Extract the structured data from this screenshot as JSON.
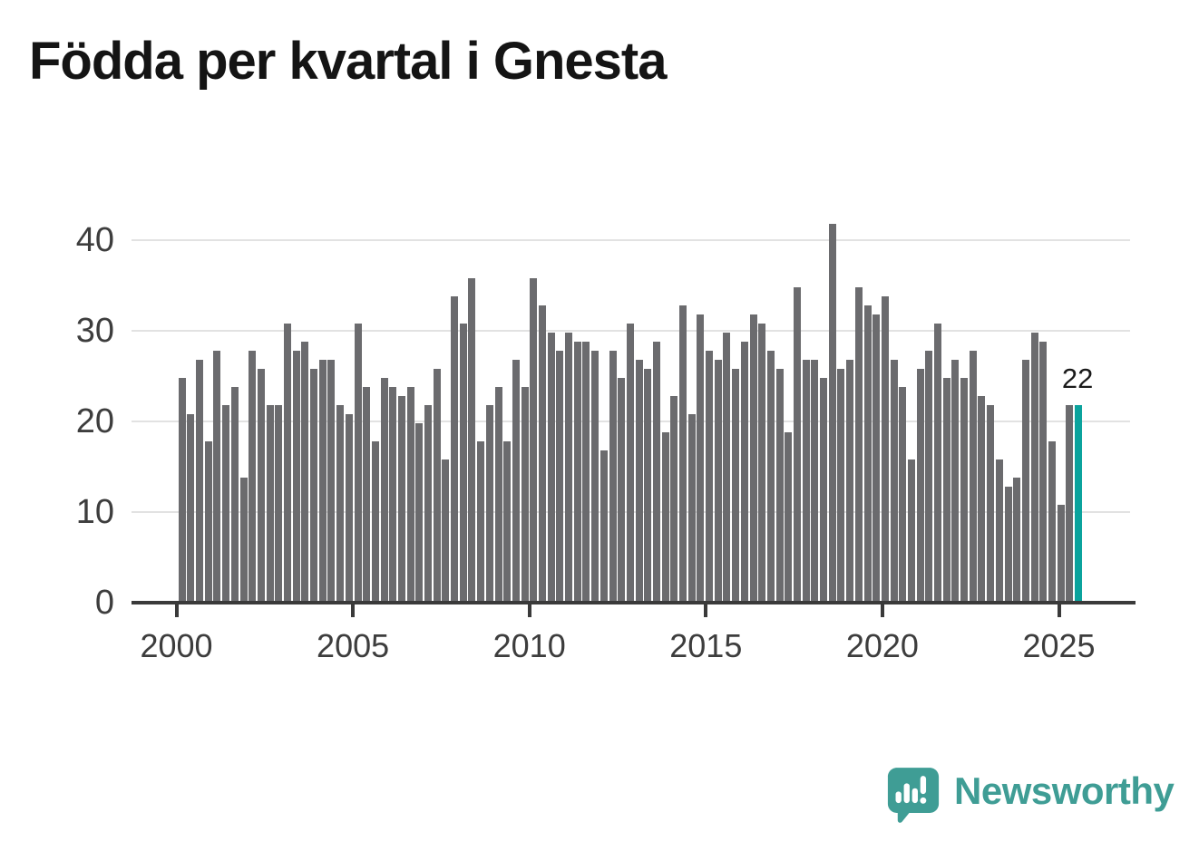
{
  "title": "Födda per kvartal i Gnesta",
  "annotation": {
    "label": "22"
  },
  "branding": {
    "name": "Newsworthy"
  },
  "colors": {
    "bar": "#6b6b6e",
    "highlight": "#0ba39d",
    "axis": "#3a3a3a",
    "grid": "#e2e2e2",
    "tick_text": "#3d3d3d",
    "logo": "#3f9d95"
  },
  "chart_data": {
    "type": "bar",
    "title": "Födda per kvartal i Gnesta",
    "xlabel": "",
    "ylabel": "",
    "start_period": "2000 Q1",
    "end_period": "2025 Q3",
    "x_tick_labels": [
      "2000",
      "2005",
      "2010",
      "2015",
      "2020",
      "2025"
    ],
    "y_tick_labels": [
      "0",
      "10",
      "20",
      "30",
      "40"
    ],
    "ylim": [
      0,
      44
    ],
    "grid": true,
    "legend": false,
    "highlight_last_bar": true,
    "last_bar_label": "22",
    "series": [
      {
        "name": "Födda per kvartal",
        "values": [
          25,
          21,
          27,
          18,
          28,
          22,
          24,
          14,
          28,
          26,
          22,
          22,
          31,
          28,
          29,
          26,
          27,
          27,
          22,
          21,
          31,
          24,
          18,
          25,
          24,
          23,
          24,
          20,
          22,
          26,
          16,
          34,
          31,
          36,
          18,
          22,
          24,
          18,
          27,
          24,
          36,
          33,
          30,
          28,
          30,
          29,
          29,
          28,
          17,
          28,
          25,
          31,
          27,
          26,
          29,
          19,
          23,
          33,
          21,
          32,
          28,
          27,
          30,
          26,
          29,
          32,
          31,
          28,
          26,
          19,
          35,
          27,
          27,
          25,
          42,
          26,
          27,
          35,
          33,
          32,
          34,
          27,
          24,
          16,
          26,
          28,
          31,
          25,
          27,
          25,
          28,
          23,
          22,
          16,
          13,
          14,
          27,
          30,
          29,
          18,
          11,
          22,
          22
        ]
      }
    ]
  }
}
